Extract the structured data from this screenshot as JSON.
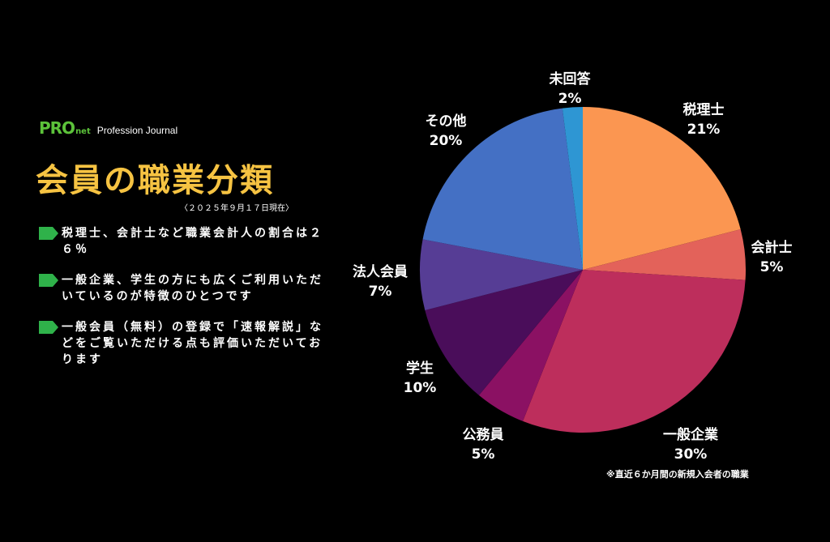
{
  "brand": {
    "logo": "PRO",
    "logo_sub": "net",
    "name": "Profession Journal"
  },
  "title": "会員の職業分類",
  "as_of": "〈２０２５年９月１７日現在〉",
  "points": [
    {
      "text": "税理士、会計士など職業会計人の割合は２６％"
    },
    {
      "text": "一般企業、学生の方にも広くご利用いただいているのが特徴のひとつです"
    },
    {
      "text": "一般会員（無料）の登録で「速報解説」などをご覧いただける点も評価いただいております"
    }
  ],
  "footnote": "※直近６か月間の新規入会者の職業",
  "colors": {
    "accent_title": "#f6c342",
    "brand_green": "#5cc23a",
    "background": "#000000"
  },
  "chart_data": {
    "type": "pie",
    "title": "",
    "start": "12 o'clock",
    "direction": "clockwise",
    "unit": "%",
    "slices": [
      {
        "label": "税理士",
        "value": 21,
        "display": "21%",
        "color": "#fb9651"
      },
      {
        "label": "会計士",
        "value": 5,
        "display": "5%",
        "color": "#e3625a"
      },
      {
        "label": "一般企業",
        "value": 30,
        "display": "30%",
        "color": "#bd2e5c"
      },
      {
        "label": "公務員",
        "value": 5,
        "display": "5%",
        "color": "#8b1163"
      },
      {
        "label": "学生",
        "value": 10,
        "display": "10%",
        "color": "#4a0d5a"
      },
      {
        "label": "法人会員",
        "value": 7,
        "display": "7%",
        "color": "#563d95"
      },
      {
        "label": "その他",
        "value": 20,
        "display": "20%",
        "color": "#4470c4"
      },
      {
        "label": "未回答",
        "value": 2,
        "display": "2%",
        "color": "#2e96d3"
      }
    ]
  }
}
